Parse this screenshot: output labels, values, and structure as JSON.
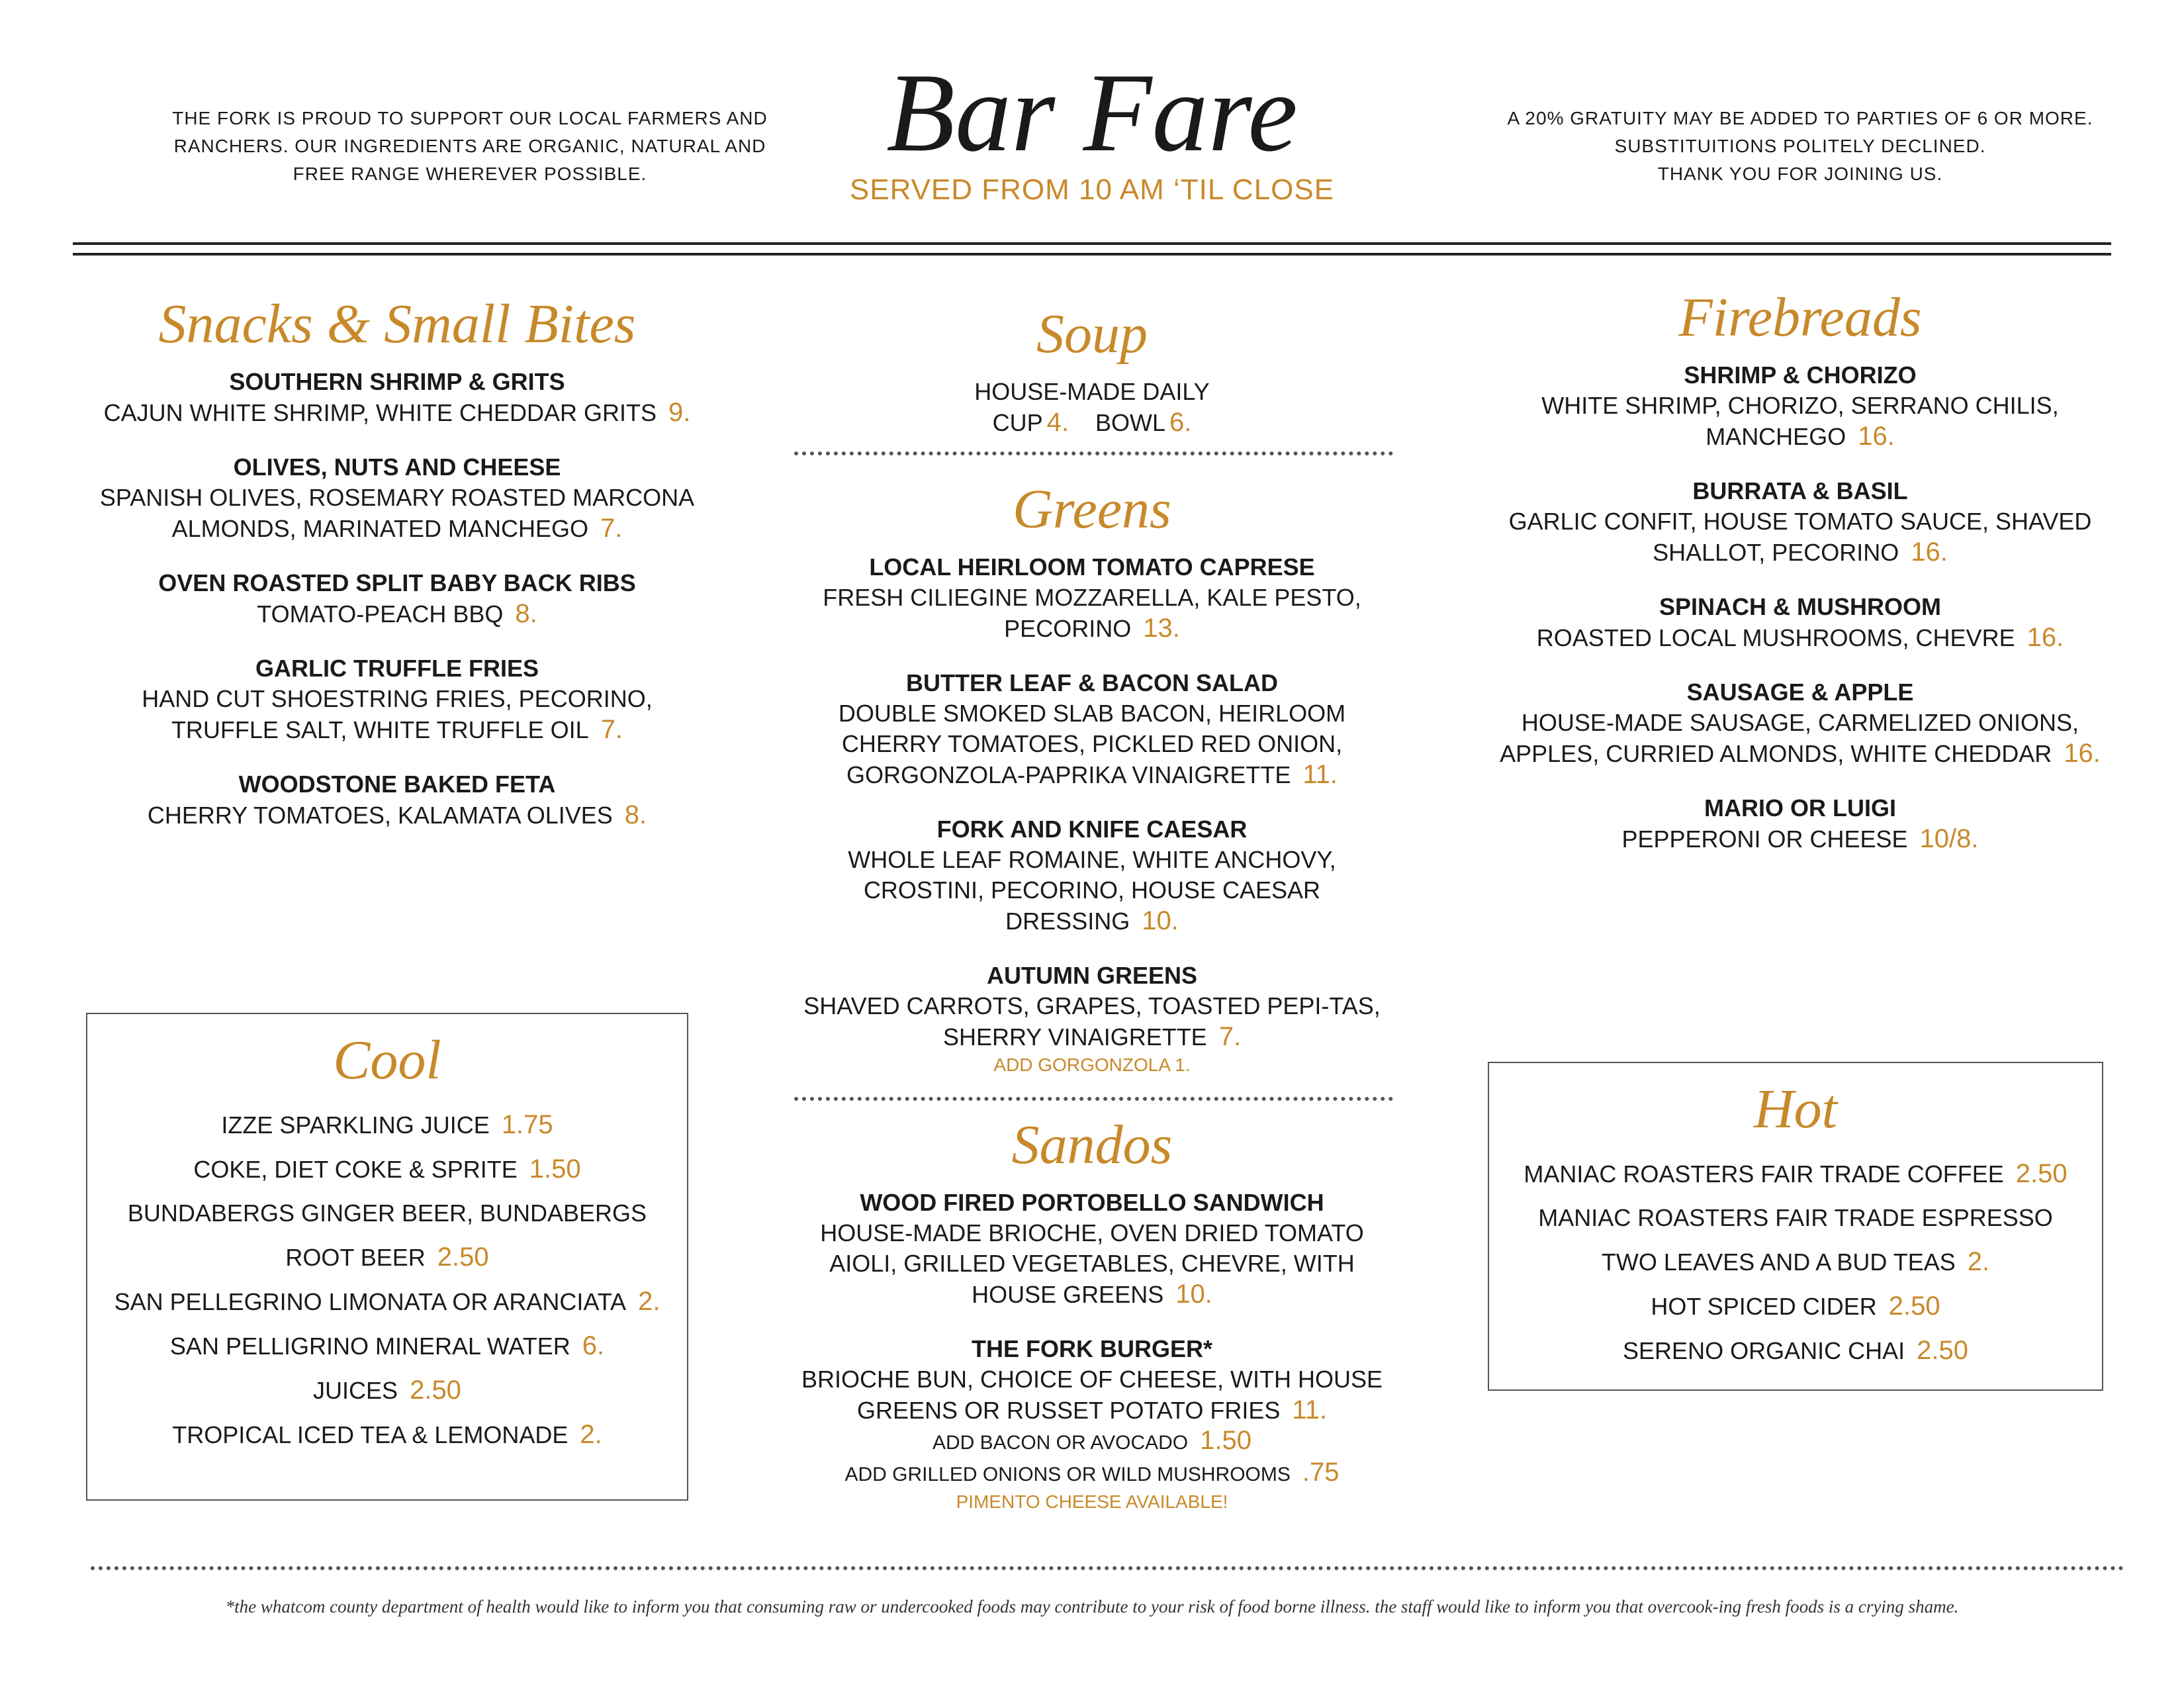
{
  "header": {
    "left": "THE FORK IS PROUD TO SUPPORT OUR LOCAL FARMERS AND RANCHERS. OUR INGREDIENTS ARE ORGANIC, NATURAL AND FREE RANGE WHEREVER POSSIBLE.",
    "title": "Bar Fare",
    "subtitle": "SERVED FROM 10 AM ‘TIL CLOSE",
    "right": [
      "A 20% GRATUITY MAY BE ADDED TO PARTIES OF 6 OR MORE.",
      "SUBSTITUITIONS POLITELY DECLINED.",
      "THANK YOU FOR JOINING US."
    ]
  },
  "sections": {
    "snacks": {
      "title": "Snacks & Small Bites",
      "items": [
        {
          "name": "SOUTHERN SHRIMP & GRITS",
          "desc": "CAJUN WHITE SHRIMP, WHITE CHEDDAR GRITS",
          "price": "9."
        },
        {
          "name": "OLIVES, NUTS AND CHEESE",
          "desc": "SPANISH OLIVES, ROSEMARY ROASTED MARCONA ALMONDS, MARINATED MANCHEGO",
          "price": "7."
        },
        {
          "name": "OVEN ROASTED SPLIT BABY BACK RIBS",
          "desc": "TOMATO-PEACH BBQ",
          "price": "8."
        },
        {
          "name": "GARLIC TRUFFLE FRIES",
          "desc": "HAND CUT SHOESTRING FRIES, PECORINO, TRUFFLE SALT, WHITE TRUFFLE OIL",
          "price": "7."
        },
        {
          "name": "WOODSTONE BAKED FETA",
          "desc": "CHERRY TOMATOES, KALAMATA OLIVES",
          "price": "8."
        }
      ]
    },
    "soup": {
      "title": "Soup",
      "items": [
        {
          "desc": "HOUSE-MADE DAILY",
          "options": [
            {
              "label": "CUP",
              "price": "4."
            },
            {
              "label": "BOWL",
              "price": "6."
            }
          ]
        }
      ]
    },
    "greens": {
      "title": "Greens",
      "items": [
        {
          "name": "LOCAL HEIRLOOM TOMATO CAPRESE",
          "desc": "FRESH CILIEGINE MOZZARELLA, KALE PESTO, PECORINO",
          "price": "13."
        },
        {
          "name": "BUTTER LEAF & BACON SALAD",
          "desc": "DOUBLE SMOKED SLAB BACON, HEIRLOOM CHERRY TOMATOES, PICKLED RED ONION, GORGONZOLA-PAPRIKA VINAIGRETTE",
          "price": "11."
        },
        {
          "name": "FORK AND KNIFE CAESAR",
          "desc": "WHOLE LEAF ROMAINE, WHITE ANCHOVY, CROSTINI, PECORINO, HOUSE CAESAR DRESSING",
          "price": "10."
        },
        {
          "name": "AUTUMN GREENS",
          "desc": "SHAVED CARROTS, GRAPES, TOASTED PEPI-TAS, SHERRY VINAIGRETTE",
          "price": "7.",
          "notes": [
            "ADD GORGONZOLA 1."
          ]
        }
      ]
    },
    "sandos": {
      "title": "Sandos",
      "items": [
        {
          "name": "WOOD FIRED PORTOBELLO SANDWICH",
          "desc": "HOUSE-MADE BRIOCHE, OVEN DRIED TOMATO AIOLI, GRILLED VEGETABLES, CHEVRE, WITH HOUSE GREENS",
          "price": "10."
        },
        {
          "name": "THE FORK BURGER*",
          "desc": "BRIOCHE BUN, CHOICE OF CHEESE, WITH HOUSE GREENS OR RUSSET POTATO FRIES",
          "price": "11.",
          "extras": [
            {
              "text": "ADD BACON OR AVOCADO",
              "price": "1.50"
            },
            {
              "text": "ADD GRILLED ONIONS OR WILD MUSHROOMS",
              "price": ".75"
            }
          ],
          "notes": [
            "PIMENTO CHEESE AVAILABLE!"
          ]
        }
      ]
    },
    "firebreads": {
      "title": "Firebreads",
      "items": [
        {
          "name": "SHRIMP & CHORIZO",
          "desc": "WHITE SHRIMP, CHORIZO, SERRANO CHILIS, MANCHEGO",
          "price": "16."
        },
        {
          "name": "BURRATA & BASIL",
          "desc": "GARLIC CONFIT, HOUSE TOMATO SAUCE, SHAVED SHALLOT, PECORINO",
          "price": "16."
        },
        {
          "name": "SPINACH & MUSHROOM",
          "desc": "ROASTED LOCAL MUSHROOMS, CHEVRE",
          "price": "16."
        },
        {
          "name": "SAUSAGE & APPLE",
          "desc": "HOUSE-MADE SAUSAGE, CARMELIZED ONIONS, APPLES, CURRIED ALMONDS, WHITE CHEDDAR",
          "price": "16."
        },
        {
          "name": "MARIO OR LUIGI",
          "desc": "PEPPERONI OR CHEESE",
          "price": "10/8."
        }
      ]
    },
    "cool": {
      "title": "Cool",
      "drinks": [
        {
          "text": "IZZE SPARKLING JUICE",
          "price": "1.75"
        },
        {
          "text": "COKE, DIET COKE & SPRITE",
          "price": "1.50"
        },
        {
          "text": "BUNDABERGS GINGER BEER, BUNDABERGS ROOT BEER",
          "price": "2.50"
        },
        {
          "text": "SAN PELLEGRINO LIMONATA OR ARANCIATA",
          "price": "2."
        },
        {
          "text": "SAN PELLIGRINO MINERAL WATER",
          "price": "6."
        },
        {
          "text": "JUICES",
          "price": "2.50"
        },
        {
          "text": "TROPICAL ICED TEA & LEMONADE",
          "price": "2."
        }
      ]
    },
    "hot": {
      "title": "Hot",
      "drinks": [
        {
          "text": "MANIAC ROASTERS FAIR TRADE COFFEE",
          "price": "2.50"
        },
        {
          "text": "MANIAC ROASTERS FAIR TRADE ESPRESSO"
        },
        {
          "text": "TWO LEAVES AND A BUD TEAS",
          "price": "2."
        },
        {
          "text": "HOT SPICED CIDER",
          "price": "2.50"
        },
        {
          "text": "SERENO ORGANIC CHAI",
          "price": "2.50"
        }
      ]
    }
  },
  "footer": "*the whatcom county department of health would like to inform you that consuming raw or undercooked foods may contribute to your risk of food borne illness. the staff would like to inform you that overcook-ing fresh foods is a crying shame."
}
